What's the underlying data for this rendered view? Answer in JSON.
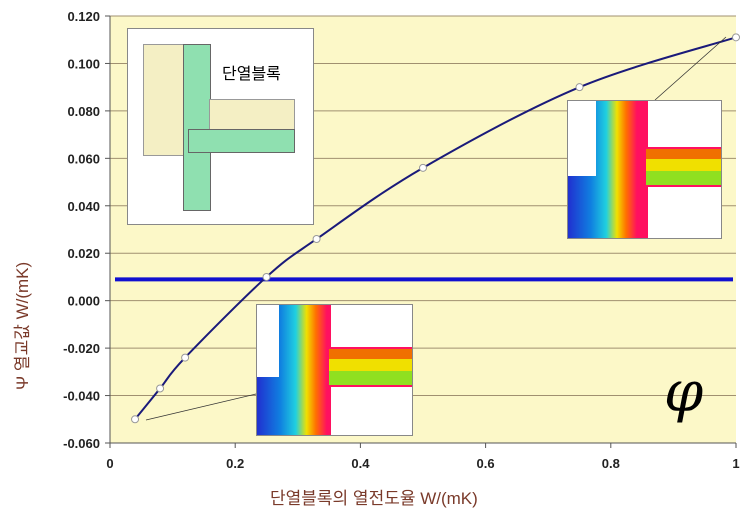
{
  "chart_data": {
    "type": "line",
    "xlabel": "단열블록의 열전도율 W/(mK)",
    "ylabel": "Ψ 열교값 W/(mK)",
    "xlim": [
      0,
      1
    ],
    "ylim": [
      -0.06,
      0.12
    ],
    "xticks": [
      "0",
      "0.2",
      "0.4",
      "0.6",
      "0.8",
      "1"
    ],
    "yticks": [
      "0.120",
      "0.100",
      "0.080",
      "0.060",
      "0.040",
      "0.020",
      "0.000",
      "-0.020",
      "-0.040",
      "-0.060"
    ],
    "grid": "horizontal",
    "series": [
      {
        "x": [
          0.04,
          0.08,
          0.12,
          0.25,
          0.33,
          0.5,
          0.75,
          1.0
        ],
        "y": [
          -0.05,
          -0.037,
          -0.024,
          0.01,
          0.026,
          0.056,
          0.09,
          0.111
        ]
      }
    ],
    "reference_line": {
      "y": 0.009
    },
    "annotations": [
      "단열블록"
    ]
  },
  "colors": {
    "plot_bg": "#fcf8c8",
    "curve": "#1a1a7a",
    "reference": "#1010d0"
  },
  "icons": [
    "psi-logo"
  ]
}
